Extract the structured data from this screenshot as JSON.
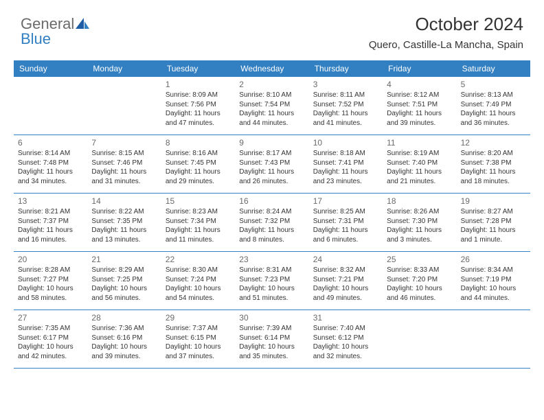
{
  "brand": {
    "word1": "General",
    "word2": "Blue"
  },
  "title": "October 2024",
  "location": "Quero, Castille-La Mancha, Spain",
  "colors": {
    "header_bg": "#327fc1",
    "header_text": "#ffffff",
    "row_divider": "#327fc1",
    "body_text": "#333333",
    "daynum_text": "#6a6a6a",
    "logo_gray": "#6a6a6a",
    "logo_blue": "#327fc1",
    "background": "#ffffff"
  },
  "typography": {
    "title_fontsize": 26,
    "location_fontsize": 15,
    "dayheader_fontsize": 12,
    "daynum_fontsize": 12,
    "cell_fontsize": 10,
    "logo_fontsize": 22
  },
  "day_names": [
    "Sunday",
    "Monday",
    "Tuesday",
    "Wednesday",
    "Thursday",
    "Friday",
    "Saturday"
  ],
  "weeks": [
    [
      null,
      null,
      {
        "n": "1",
        "sr": "Sunrise: 8:09 AM",
        "ss": "Sunset: 7:56 PM",
        "dl1": "Daylight: 11 hours",
        "dl2": "and 47 minutes."
      },
      {
        "n": "2",
        "sr": "Sunrise: 8:10 AM",
        "ss": "Sunset: 7:54 PM",
        "dl1": "Daylight: 11 hours",
        "dl2": "and 44 minutes."
      },
      {
        "n": "3",
        "sr": "Sunrise: 8:11 AM",
        "ss": "Sunset: 7:52 PM",
        "dl1": "Daylight: 11 hours",
        "dl2": "and 41 minutes."
      },
      {
        "n": "4",
        "sr": "Sunrise: 8:12 AM",
        "ss": "Sunset: 7:51 PM",
        "dl1": "Daylight: 11 hours",
        "dl2": "and 39 minutes."
      },
      {
        "n": "5",
        "sr": "Sunrise: 8:13 AM",
        "ss": "Sunset: 7:49 PM",
        "dl1": "Daylight: 11 hours",
        "dl2": "and 36 minutes."
      }
    ],
    [
      {
        "n": "6",
        "sr": "Sunrise: 8:14 AM",
        "ss": "Sunset: 7:48 PM",
        "dl1": "Daylight: 11 hours",
        "dl2": "and 34 minutes."
      },
      {
        "n": "7",
        "sr": "Sunrise: 8:15 AM",
        "ss": "Sunset: 7:46 PM",
        "dl1": "Daylight: 11 hours",
        "dl2": "and 31 minutes."
      },
      {
        "n": "8",
        "sr": "Sunrise: 8:16 AM",
        "ss": "Sunset: 7:45 PM",
        "dl1": "Daylight: 11 hours",
        "dl2": "and 29 minutes."
      },
      {
        "n": "9",
        "sr": "Sunrise: 8:17 AM",
        "ss": "Sunset: 7:43 PM",
        "dl1": "Daylight: 11 hours",
        "dl2": "and 26 minutes."
      },
      {
        "n": "10",
        "sr": "Sunrise: 8:18 AM",
        "ss": "Sunset: 7:41 PM",
        "dl1": "Daylight: 11 hours",
        "dl2": "and 23 minutes."
      },
      {
        "n": "11",
        "sr": "Sunrise: 8:19 AM",
        "ss": "Sunset: 7:40 PM",
        "dl1": "Daylight: 11 hours",
        "dl2": "and 21 minutes."
      },
      {
        "n": "12",
        "sr": "Sunrise: 8:20 AM",
        "ss": "Sunset: 7:38 PM",
        "dl1": "Daylight: 11 hours",
        "dl2": "and 18 minutes."
      }
    ],
    [
      {
        "n": "13",
        "sr": "Sunrise: 8:21 AM",
        "ss": "Sunset: 7:37 PM",
        "dl1": "Daylight: 11 hours",
        "dl2": "and 16 minutes."
      },
      {
        "n": "14",
        "sr": "Sunrise: 8:22 AM",
        "ss": "Sunset: 7:35 PM",
        "dl1": "Daylight: 11 hours",
        "dl2": "and 13 minutes."
      },
      {
        "n": "15",
        "sr": "Sunrise: 8:23 AM",
        "ss": "Sunset: 7:34 PM",
        "dl1": "Daylight: 11 hours",
        "dl2": "and 11 minutes."
      },
      {
        "n": "16",
        "sr": "Sunrise: 8:24 AM",
        "ss": "Sunset: 7:32 PM",
        "dl1": "Daylight: 11 hours",
        "dl2": "and 8 minutes."
      },
      {
        "n": "17",
        "sr": "Sunrise: 8:25 AM",
        "ss": "Sunset: 7:31 PM",
        "dl1": "Daylight: 11 hours",
        "dl2": "and 6 minutes."
      },
      {
        "n": "18",
        "sr": "Sunrise: 8:26 AM",
        "ss": "Sunset: 7:30 PM",
        "dl1": "Daylight: 11 hours",
        "dl2": "and 3 minutes."
      },
      {
        "n": "19",
        "sr": "Sunrise: 8:27 AM",
        "ss": "Sunset: 7:28 PM",
        "dl1": "Daylight: 11 hours",
        "dl2": "and 1 minute."
      }
    ],
    [
      {
        "n": "20",
        "sr": "Sunrise: 8:28 AM",
        "ss": "Sunset: 7:27 PM",
        "dl1": "Daylight: 10 hours",
        "dl2": "and 58 minutes."
      },
      {
        "n": "21",
        "sr": "Sunrise: 8:29 AM",
        "ss": "Sunset: 7:25 PM",
        "dl1": "Daylight: 10 hours",
        "dl2": "and 56 minutes."
      },
      {
        "n": "22",
        "sr": "Sunrise: 8:30 AM",
        "ss": "Sunset: 7:24 PM",
        "dl1": "Daylight: 10 hours",
        "dl2": "and 54 minutes."
      },
      {
        "n": "23",
        "sr": "Sunrise: 8:31 AM",
        "ss": "Sunset: 7:23 PM",
        "dl1": "Daylight: 10 hours",
        "dl2": "and 51 minutes."
      },
      {
        "n": "24",
        "sr": "Sunrise: 8:32 AM",
        "ss": "Sunset: 7:21 PM",
        "dl1": "Daylight: 10 hours",
        "dl2": "and 49 minutes."
      },
      {
        "n": "25",
        "sr": "Sunrise: 8:33 AM",
        "ss": "Sunset: 7:20 PM",
        "dl1": "Daylight: 10 hours",
        "dl2": "and 46 minutes."
      },
      {
        "n": "26",
        "sr": "Sunrise: 8:34 AM",
        "ss": "Sunset: 7:19 PM",
        "dl1": "Daylight: 10 hours",
        "dl2": "and 44 minutes."
      }
    ],
    [
      {
        "n": "27",
        "sr": "Sunrise: 7:35 AM",
        "ss": "Sunset: 6:17 PM",
        "dl1": "Daylight: 10 hours",
        "dl2": "and 42 minutes."
      },
      {
        "n": "28",
        "sr": "Sunrise: 7:36 AM",
        "ss": "Sunset: 6:16 PM",
        "dl1": "Daylight: 10 hours",
        "dl2": "and 39 minutes."
      },
      {
        "n": "29",
        "sr": "Sunrise: 7:37 AM",
        "ss": "Sunset: 6:15 PM",
        "dl1": "Daylight: 10 hours",
        "dl2": "and 37 minutes."
      },
      {
        "n": "30",
        "sr": "Sunrise: 7:39 AM",
        "ss": "Sunset: 6:14 PM",
        "dl1": "Daylight: 10 hours",
        "dl2": "and 35 minutes."
      },
      {
        "n": "31",
        "sr": "Sunrise: 7:40 AM",
        "ss": "Sunset: 6:12 PM",
        "dl1": "Daylight: 10 hours",
        "dl2": "and 32 minutes."
      },
      null,
      null
    ]
  ]
}
